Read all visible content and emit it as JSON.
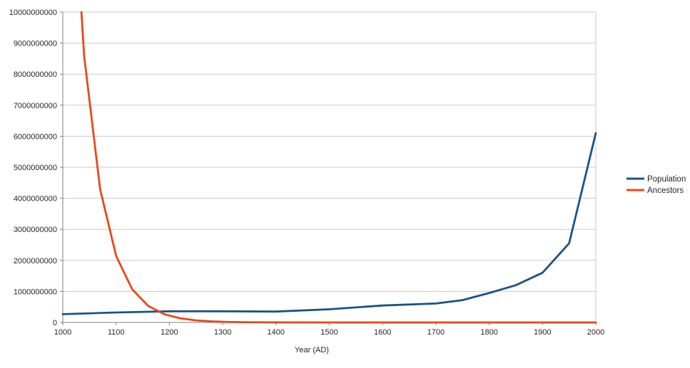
{
  "chart_data": {
    "type": "line",
    "title": "",
    "xlabel": "Year (AD)",
    "ylabel": "",
    "xlim": [
      1000,
      2000
    ],
    "ylim": [
      0,
      10000000000
    ],
    "x_tick_step": 100,
    "y_tick_step": 1000000000,
    "x_tick_labels": [
      "1000",
      "1100",
      "1200",
      "1300",
      "1400",
      "1500",
      "1600",
      "1700",
      "1800",
      "1900",
      "2000"
    ],
    "y_tick_labels": [
      "0",
      "1000000000",
      "2000000000",
      "3000000000",
      "4000000000",
      "5000000000",
      "6000000000",
      "7000000000",
      "8000000000",
      "9000000000",
      "10000000000"
    ],
    "grid": true,
    "legend_position": "right",
    "series": [
      {
        "name": "Population",
        "color": "#1b5384",
        "points": [
          [
            1000,
            265000000
          ],
          [
            1100,
            320000000
          ],
          [
            1200,
            360000000
          ],
          [
            1300,
            360000000
          ],
          [
            1400,
            350000000
          ],
          [
            1500,
            425000000
          ],
          [
            1600,
            545000000
          ],
          [
            1700,
            610000000
          ],
          [
            1750,
            720000000
          ],
          [
            1800,
            950000000
          ],
          [
            1850,
            1200000000
          ],
          [
            1900,
            1600000000
          ],
          [
            1950,
            2550000000
          ],
          [
            2000,
            6100000000
          ]
        ]
      },
      {
        "name": "Ancestors",
        "color": "#e8481a",
        "points": [
          [
            1035,
            10000000000
          ],
          [
            1040,
            8589934592
          ],
          [
            1070,
            4294967296
          ],
          [
            1100,
            2147483648
          ],
          [
            1130,
            1073741824
          ],
          [
            1160,
            536870912
          ],
          [
            1190,
            268435456
          ],
          [
            1220,
            134217728
          ],
          [
            1250,
            67108864
          ],
          [
            1280,
            33554432
          ],
          [
            1310,
            16777216
          ],
          [
            1340,
            8388608
          ],
          [
            1400,
            2097152
          ],
          [
            1500,
            262144
          ],
          [
            1600,
            32768
          ],
          [
            1700,
            4096
          ],
          [
            1800,
            512
          ],
          [
            1900,
            64
          ],
          [
            2000,
            2
          ]
        ]
      }
    ],
    "colors": {
      "grid": "#c9c9c9",
      "axis": "#808080",
      "text": "#262626",
      "background": "#ffffff"
    }
  }
}
